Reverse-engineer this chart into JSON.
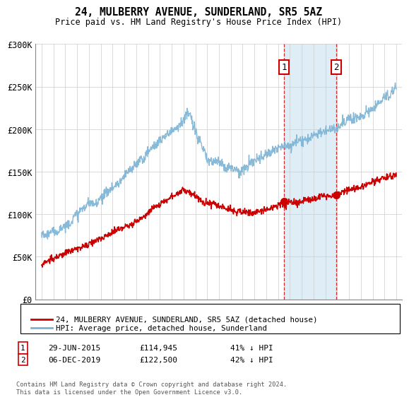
{
  "title": "24, MULBERRY AVENUE, SUNDERLAND, SR5 5AZ",
  "subtitle": "Price paid vs. HM Land Registry's House Price Index (HPI)",
  "sale1_date": 2015.5,
  "sale1_label": "1",
  "sale1_price": 114945,
  "sale1_text": "29-JUN-2015",
  "sale1_pct": "41% ↓ HPI",
  "sale2_date": 2019.92,
  "sale2_label": "2",
  "sale2_price": 122500,
  "sale2_text": "06-DEC-2019",
  "sale2_pct": "42% ↓ HPI",
  "hpi_color": "#7ab3d4",
  "price_color": "#cc0000",
  "shaded_color": "#daeaf5",
  "legend_line1": "24, MULBERRY AVENUE, SUNDERLAND, SR5 5AZ (detached house)",
  "legend_line2": "HPI: Average price, detached house, Sunderland",
  "footer": "Contains HM Land Registry data © Crown copyright and database right 2024.\nThis data is licensed under the Open Government Licence v3.0.",
  "ylabel_ticks": [
    "£0",
    "£50K",
    "£100K",
    "£150K",
    "£200K",
    "£250K",
    "£300K"
  ],
  "ytick_vals": [
    0,
    50000,
    100000,
    150000,
    200000,
    250000,
    300000
  ],
  "xmin": 1994.5,
  "xmax": 2025.5,
  "ymin": 0,
  "ymax": 300000
}
